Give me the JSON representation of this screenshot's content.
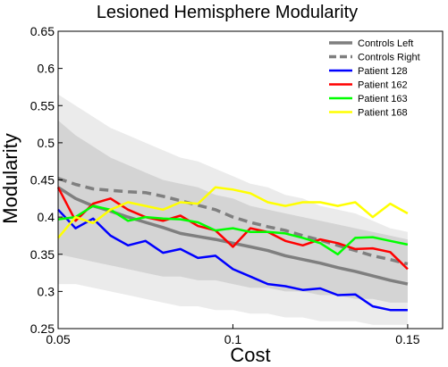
{
  "chart_data": {
    "type": "line",
    "title": "Lesioned Hemisphere Modularity",
    "xlabel": "Cost",
    "ylabel": "Modularity",
    "xlim": [
      0.05,
      0.16
    ],
    "ylim": [
      0.25,
      0.65
    ],
    "xticks": [
      0.05,
      0.1,
      0.15
    ],
    "xtick_labels": [
      "0.05",
      "0.1",
      "0.15"
    ],
    "yticks": [
      0.25,
      0.3,
      0.35,
      0.4,
      0.45,
      0.5,
      0.55,
      0.6,
      0.65
    ],
    "ytick_labels": [
      "0.25",
      "0.3",
      "0.35",
      "0.4",
      "0.45",
      "0.5",
      "0.55",
      "0.6",
      "0.65"
    ],
    "grid": false,
    "legend_position": "top-right",
    "x": [
      0.05,
      0.055,
      0.06,
      0.065,
      0.07,
      0.075,
      0.08,
      0.085,
      0.09,
      0.095,
      0.1,
      0.105,
      0.11,
      0.115,
      0.12,
      0.125,
      0.13,
      0.135,
      0.14,
      0.145,
      0.15
    ],
    "bands": [
      {
        "label": "Controls Left band (outer)",
        "color": "#ebebeb",
        "lower": [
          0.31,
          0.31,
          0.305,
          0.3,
          0.295,
          0.29,
          0.285,
          0.28,
          0.28,
          0.275,
          0.275,
          0.27,
          0.27,
          0.265,
          0.265,
          0.26,
          0.26,
          0.26,
          0.255,
          0.255,
          0.255
        ],
        "upper": [
          0.565,
          0.55,
          0.535,
          0.52,
          0.51,
          0.5,
          0.49,
          0.48,
          0.475,
          0.465,
          0.455,
          0.445,
          0.44,
          0.43,
          0.425,
          0.415,
          0.41,
          0.405,
          0.395,
          0.385,
          0.38
        ]
      },
      {
        "label": "Controls Right band (inner)",
        "color": "#d4d4d4",
        "lower": [
          0.35,
          0.345,
          0.34,
          0.335,
          0.33,
          0.325,
          0.32,
          0.32,
          0.315,
          0.315,
          0.31,
          0.305,
          0.305,
          0.3,
          0.3,
          0.295,
          0.295,
          0.29,
          0.29,
          0.285,
          0.285
        ],
        "upper": [
          0.53,
          0.51,
          0.495,
          0.48,
          0.47,
          0.46,
          0.45,
          0.445,
          0.44,
          0.43,
          0.425,
          0.415,
          0.41,
          0.405,
          0.4,
          0.395,
          0.39,
          0.385,
          0.38,
          0.375,
          0.37
        ]
      }
    ],
    "series": [
      {
        "name": "Controls Left",
        "color": "#7f7f7f",
        "width": 3.5,
        "dash": "",
        "values": [
          0.44,
          0.425,
          0.415,
          0.408,
          0.4,
          0.393,
          0.386,
          0.378,
          0.374,
          0.37,
          0.365,
          0.36,
          0.355,
          0.348,
          0.343,
          0.338,
          0.332,
          0.327,
          0.321,
          0.315,
          0.31
        ]
      },
      {
        "name": "Controls Right",
        "color": "#7f7f7f",
        "width": 3.5,
        "dash": "10,6",
        "values": [
          0.452,
          0.444,
          0.438,
          0.436,
          0.434,
          0.433,
          0.428,
          0.422,
          0.416,
          0.41,
          0.4,
          0.393,
          0.387,
          0.382,
          0.375,
          0.369,
          0.362,
          0.355,
          0.348,
          0.343,
          0.337
        ]
      },
      {
        "name": "Patient 128",
        "color": "#0000ff",
        "width": 2.5,
        "dash": "",
        "values": [
          0.41,
          0.385,
          0.398,
          0.375,
          0.362,
          0.368,
          0.352,
          0.357,
          0.345,
          0.348,
          0.33,
          0.32,
          0.31,
          0.307,
          0.302,
          0.304,
          0.295,
          0.296,
          0.28,
          0.275,
          0.275
        ]
      },
      {
        "name": "Patient 162",
        "color": "#ff0000",
        "width": 2.5,
        "dash": "",
        "values": [
          0.44,
          0.395,
          0.418,
          0.425,
          0.41,
          0.4,
          0.395,
          0.402,
          0.388,
          0.382,
          0.36,
          0.385,
          0.38,
          0.368,
          0.362,
          0.37,
          0.365,
          0.357,
          0.358,
          0.353,
          0.33
        ]
      },
      {
        "name": "Patient 163",
        "color": "#00ff00",
        "width": 2.5,
        "dash": "",
        "values": [
          0.397,
          0.4,
          0.415,
          0.41,
          0.395,
          0.4,
          0.398,
          0.397,
          0.393,
          0.382,
          0.385,
          0.38,
          0.38,
          0.378,
          0.372,
          0.365,
          0.35,
          0.372,
          0.373,
          0.368,
          0.363
        ]
      },
      {
        "name": "Patient 168",
        "color": "#ffff00",
        "width": 2.5,
        "dash": "",
        "values": [
          0.372,
          0.4,
          0.392,
          0.41,
          0.42,
          0.415,
          0.41,
          0.42,
          0.418,
          0.44,
          0.437,
          0.432,
          0.42,
          0.415,
          0.42,
          0.42,
          0.415,
          0.42,
          0.4,
          0.418,
          0.405
        ]
      }
    ]
  }
}
